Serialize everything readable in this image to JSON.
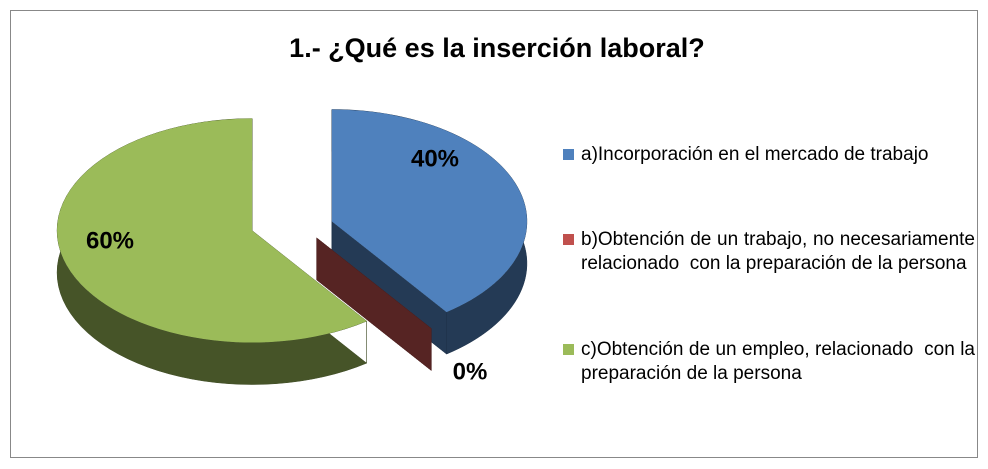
{
  "chart_data": {
    "type": "pie",
    "title": "1.- ¿Qué es la inserción laboral?",
    "categories": [
      "a)Incorporación en el mercado de trabajo",
      "b)Obtención de un trabajo, no necesariamente relacionado  con la preparación de la persona",
      "c)Obtención de un empleo, relacionado  con la preparación de la persona"
    ],
    "values": [
      40,
      0,
      60
    ],
    "value_labels": [
      "40%",
      "0%",
      "60%"
    ],
    "colors": [
      "#4f81bd",
      "#c0504d",
      "#9bbb59"
    ]
  }
}
